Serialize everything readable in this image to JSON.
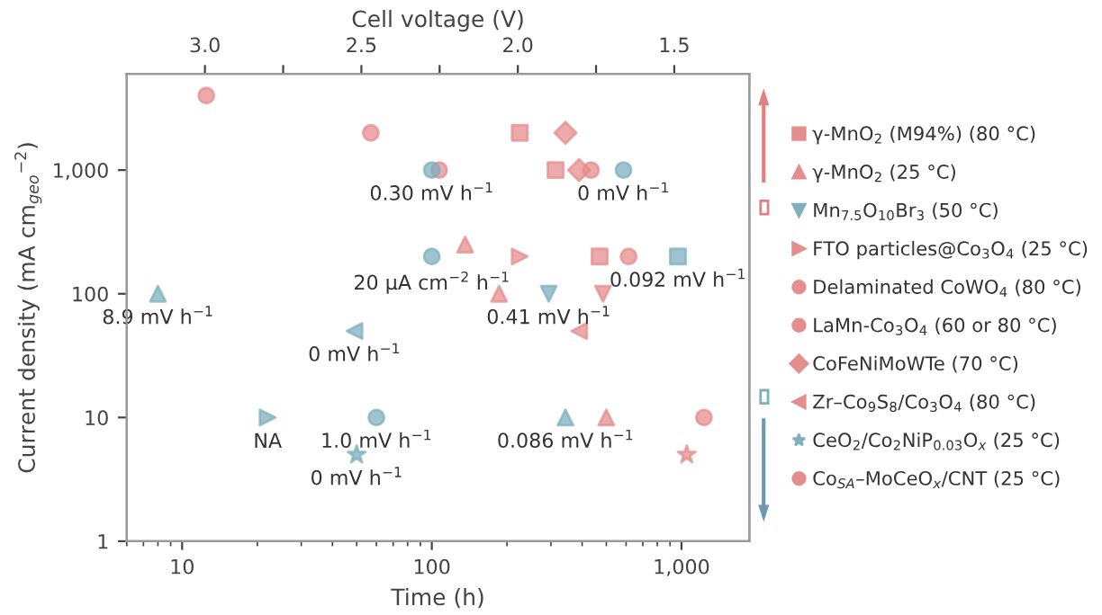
{
  "chart_data": {
    "type": "scatter",
    "xlabel": "Time (h)",
    "ylabel": "Current density (mA cm$_{geo}$$^{−2}$)",
    "x2label": "Cell voltage (V)",
    "log": "xy",
    "xlim": [
      6,
      1870
    ],
    "ylim": [
      1,
      6000
    ],
    "xticks": [
      10,
      100,
      {
        "value": 1000,
        "label": "1,000"
      }
    ],
    "yticks": [
      1,
      10,
      100,
      {
        "value": 1000,
        "label": "1,000"
      }
    ],
    "x2lim": [
      3.25,
      1.26
    ],
    "x2ticks": [
      {
        "value": 3.0,
        "label": "3.0"
      },
      {
        "value": 2.75,
        "label": null
      },
      {
        "value": 2.5,
        "label": "2.5"
      },
      {
        "value": 2.25,
        "label": null
      },
      {
        "value": 2.0,
        "label": "2.0"
      },
      {
        "value": 1.75,
        "label": null
      },
      {
        "value": 1.5,
        "label": "1.5"
      }
    ],
    "grid": false,
    "legend": "right",
    "series": [
      {
        "name": "γ-MnO$_{2}$ (M94%) (80 °C)",
        "marker": "square",
        "x": [
          225,
          313,
          470,
          968
        ],
        "values": [
          2000,
          1000,
          200,
          200
        ],
        "colors": [
          "#e58e8e",
          "#e58e8e",
          "#e58e8e",
          "#7fb0c0"
        ]
      },
      {
        "name": "γ-MnO$_{2}$ (25 °C)",
        "marker": "triangle",
        "x": [
          136,
          186,
          500,
          8,
          343
        ],
        "values": [
          250,
          100,
          10,
          100,
          10
        ],
        "colors": [
          "#e58e8e",
          "#e58e8e",
          "#e58e8e",
          "#7fb0c0",
          "#7fb0c0"
        ]
      },
      {
        "name": "Mn$_{7.5}$O$_{10}$Br$_{3}$ (50 °C)",
        "marker": "triangle_down",
        "x": [
          294,
          485
        ],
        "values": [
          100,
          100
        ],
        "colors": [
          "#7fb0c0",
          "#e58e8e"
        ]
      },
      {
        "name": "FTO particles@Co$_{3}$O$_{4}$ (25 °C)",
        "marker": "triangle_right",
        "x": [
          225,
          22
        ],
        "values": [
          200,
          10
        ],
        "colors": [
          "#e58e8e",
          "#7fb0c0"
        ]
      },
      {
        "name": "Delaminated CoWO$_{4}$ (80 °C)",
        "marker": "circle",
        "x": [
          12.5,
          57,
          614
        ],
        "values": [
          4000,
          2000,
          200
        ],
        "colors": [
          "#e58e8e",
          "#e58e8e",
          "#e58e8e"
        ]
      },
      {
        "name": "LaMn-Co$_{3}$O$_{4}$ (60 or 80 °C)",
        "marker": "circle",
        "x": [
          107,
          434,
          100,
          586,
          100,
          60
        ],
        "values": [
          1000,
          1000,
          1000,
          1000,
          200,
          10
        ],
        "colors": [
          "#e58e8e",
          "#e58e8e",
          "#7fb0c0",
          "#7fb0c0",
          "#7fb0c0",
          "#7fb0c0"
        ]
      },
      {
        "name": "CoFeNiMoWTe (70 °C)",
        "marker": "diamond",
        "x": [
          343,
          389
        ],
        "values": [
          2000,
          1000
        ],
        "colors": [
          "#e58e8e",
          "#e58e8e"
        ]
      },
      {
        "name": "Zr–Co$_{9}$S$_{8}$/Co$_{3}$O$_{4}$ (80 °C)",
        "marker": "triangle_left",
        "x": [
          389,
          49
        ],
        "values": [
          50,
          50
        ],
        "colors": [
          "#e58e8e",
          "#7fb0c0"
        ]
      },
      {
        "name": "CeO$_{2}$/Co$_{2}$NiP$_{0.03}$O$_{x}$ (25 °C)",
        "marker": "star",
        "x": [
          50,
          1050
        ],
        "values": [
          5,
          5
        ],
        "colors": [
          "#7fb0c0",
          "#e58e8e"
        ]
      },
      {
        "name": "Co$_{SA}$–MoCeO$_{x}$/CNT (25 °C)",
        "marker": "circle",
        "x": [
          1230
        ],
        "values": [
          10
        ],
        "colors": [
          "#e58e8e"
        ]
      }
    ],
    "annotations": [
      {
        "text": "0.30 mV h$^{−1}$",
        "x": 100,
        "y": 1000
      },
      {
        "text": "0 mV h$^{−1}$",
        "x": 586,
        "y": 1000
      },
      {
        "text": "20 μA cm$^{−2}$ h$^{−1}$",
        "x": 100,
        "y": 200
      },
      {
        "text": "0.092 mV h$^{−1}$",
        "x": 968,
        "y": 200
      },
      {
        "text": "8.9 mV h$^{−1}$",
        "x": 8,
        "y": 100
      },
      {
        "text": "0.41 mV h$^{−1}$",
        "x": 294,
        "y": 100
      },
      {
        "text": "0 mV h$^{−1}$",
        "x": 49,
        "y": 50
      },
      {
        "text": "NA",
        "x": 22,
        "y": 10
      },
      {
        "text": "1.0 mV h$^{−1}$",
        "x": 60,
        "y": 10
      },
      {
        "text": "0 mV h$^{−1}$",
        "x": 50,
        "y": 5
      },
      {
        "text": "0.086 mV h$^{−1}$",
        "x": 343,
        "y": 10
      }
    ]
  }
}
